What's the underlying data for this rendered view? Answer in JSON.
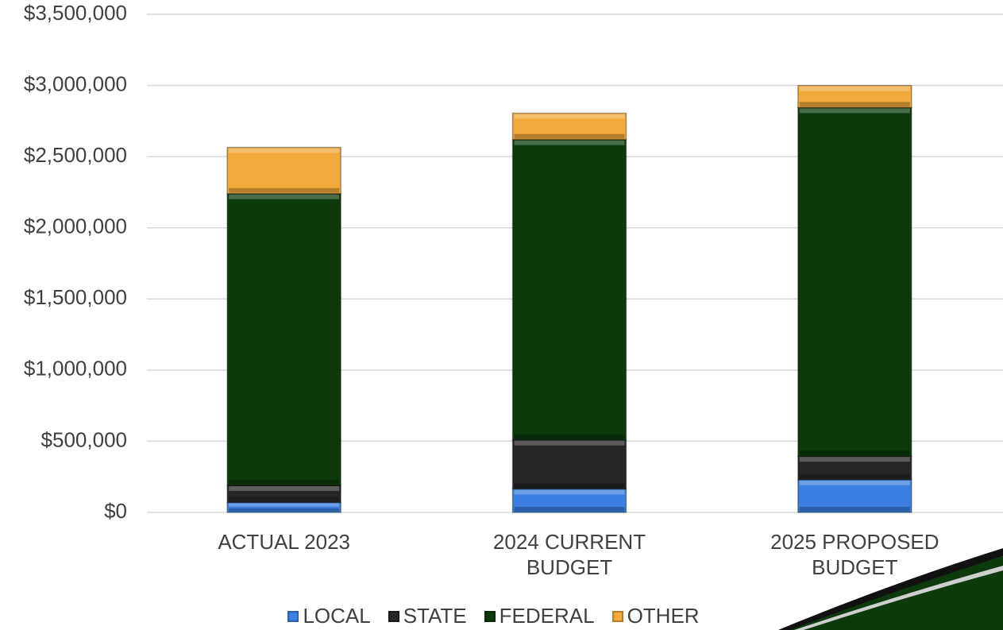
{
  "chart_data": {
    "type": "stacked_bar",
    "categories": [
      "ACTUAL 2023",
      "2024 CURRENT BUDGET",
      "2025 PROPOSED BUDGET"
    ],
    "series": [
      {
        "name": "LOCAL",
        "color": "#3b7fe0",
        "values": [
          70000,
          165000,
          230000
        ]
      },
      {
        "name": "STATE",
        "color": "#262626",
        "values": [
          120000,
          345000,
          165000
        ]
      },
      {
        "name": "FEDERAL",
        "color": "#0d3a0d",
        "values": [
          2050000,
          2110000,
          2450000
        ]
      },
      {
        "name": "OTHER",
        "color": "#f2a93b",
        "values": [
          325000,
          185000,
          155000
        ]
      }
    ],
    "ylim": [
      0,
      3500000
    ],
    "yticks": [
      {
        "value": 0,
        "label": "$0"
      },
      {
        "value": 500000,
        "label": "$500,000"
      },
      {
        "value": 1000000,
        "label": "$1,000,000"
      },
      {
        "value": 1500000,
        "label": "$1,500,000"
      },
      {
        "value": 2000000,
        "label": "$2,000,000"
      },
      {
        "value": 2500000,
        "label": "$2,500,000"
      },
      {
        "value": 3000000,
        "label": "$3,000,000"
      },
      {
        "value": 3500000,
        "label": "$3,500,000"
      }
    ],
    "grid": true,
    "legend": "bottom"
  }
}
